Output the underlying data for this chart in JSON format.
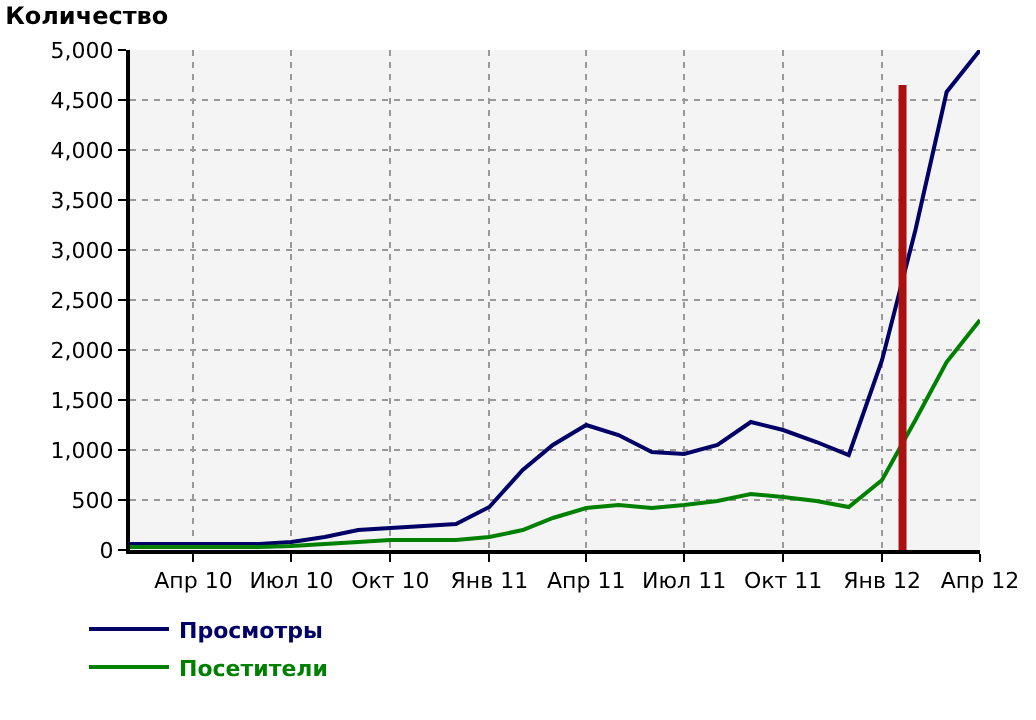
{
  "chart_data": {
    "type": "line",
    "title": "Количество",
    "x": [
      "2010-02",
      "2010-03",
      "2010-04",
      "2010-05",
      "2010-06",
      "2010-07",
      "2010-08",
      "2010-09",
      "2010-10",
      "2010-11",
      "2010-12",
      "2011-01",
      "2011-02",
      "2011-03",
      "2011-04",
      "2011-05",
      "2011-06",
      "2011-07",
      "2011-08",
      "2011-09",
      "2011-10",
      "2011-11",
      "2011-12",
      "2012-01",
      "2012-02",
      "2012-03",
      "2012-04"
    ],
    "series": [
      {
        "name": "Просмотры",
        "color": "#000066",
        "values": [
          60,
          60,
          60,
          60,
          60,
          80,
          130,
          200,
          220,
          240,
          260,
          430,
          800,
          1050,
          1250,
          1150,
          980,
          960,
          1050,
          1280,
          1200,
          1080,
          950,
          1900,
          3200,
          4580,
          5000
        ]
      },
      {
        "name": "Посетители",
        "color": "#008000",
        "values": [
          30,
          30,
          30,
          30,
          30,
          40,
          60,
          80,
          100,
          100,
          100,
          130,
          200,
          320,
          420,
          450,
          420,
          450,
          490,
          560,
          530,
          490,
          430,
          700,
          1300,
          1880,
          2300
        ]
      }
    ],
    "xlim": [
      "2010-02-01",
      "2012-04-01"
    ],
    "xticks": [
      {
        "value": "2010-04-01",
        "label": "Апр 10"
      },
      {
        "value": "2010-07-01",
        "label": "Июл 10"
      },
      {
        "value": "2010-10-01",
        "label": "Окт 10"
      },
      {
        "value": "2011-01-01",
        "label": "Янв 11"
      },
      {
        "value": "2011-04-01",
        "label": "Апр 11"
      },
      {
        "value": "2011-07-01",
        "label": "Июл 11"
      },
      {
        "value": "2011-10-01",
        "label": "Окт 11"
      },
      {
        "value": "2012-01-01",
        "label": "Янв 12"
      },
      {
        "value": "2012-04-01",
        "label": "Апр 12"
      }
    ],
    "ylim": [
      0,
      5000
    ],
    "yticks": [
      0,
      500,
      {
        "value": 1000,
        "label": "1,000"
      },
      {
        "value": 1500,
        "label": "1,500"
      },
      {
        "value": 2000,
        "label": "2,000"
      },
      {
        "value": 2500,
        "label": "2,500"
      },
      {
        "value": 3000,
        "label": "3,000"
      },
      {
        "value": 3500,
        "label": "3,500"
      },
      {
        "value": 4000,
        "label": "4,000"
      },
      {
        "value": 4500,
        "label": "4,500"
      },
      {
        "value": 5000,
        "label": "5,000"
      }
    ],
    "ref_lines": [
      {
        "axis": "x",
        "value": "2012-01-20",
        "color": "#aa1111"
      }
    ],
    "grid": true,
    "legend": "bottom left",
    "marker": "none",
    "line_style": "solid"
  }
}
